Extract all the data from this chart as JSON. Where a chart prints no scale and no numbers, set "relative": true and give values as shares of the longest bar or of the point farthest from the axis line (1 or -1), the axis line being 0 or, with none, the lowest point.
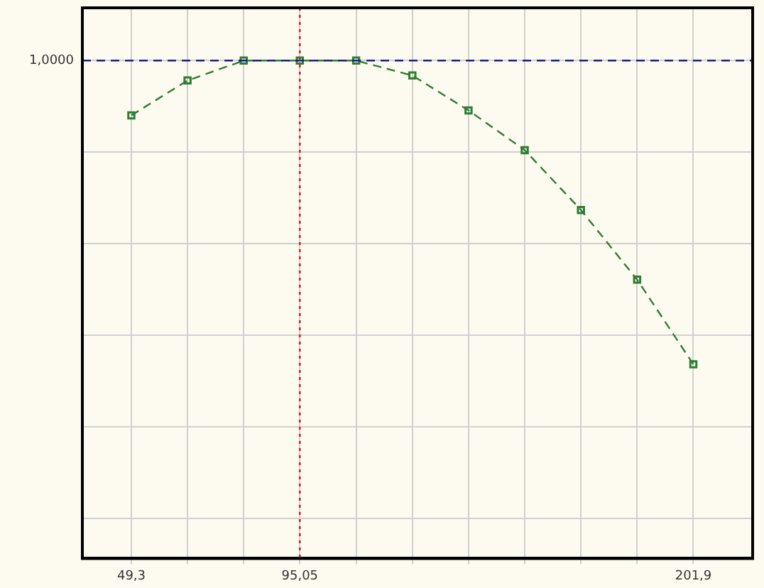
{
  "chart_data": {
    "type": "line",
    "relative": true,
    "x": [
      49.3,
      64.56,
      79.82,
      95.05,
      110.34,
      125.6,
      140.86,
      156.12,
      171.38,
      186.64,
      201.9
    ],
    "series": [
      {
        "color": "#2e7d32",
        "values": [
          0.89,
          0.96,
          1.0,
          1.0,
          1.0,
          0.97,
          0.9,
          0.82,
          0.7,
          0.56,
          0.39
        ]
      }
    ],
    "xlim": [
      36,
      218
    ],
    "xticks": [
      {
        "value": 49.3,
        "label": "49,3"
      },
      {
        "value": 64.56,
        "label": null
      },
      {
        "value": 79.82,
        "label": null
      },
      {
        "value": 95.05,
        "label": "95,05"
      },
      {
        "value": 110.34,
        "label": null
      },
      {
        "value": 125.6,
        "label": null
      },
      {
        "value": 140.86,
        "label": null
      },
      {
        "value": 156.12,
        "label": null
      },
      {
        "value": 171.38,
        "label": null
      },
      {
        "value": 186.64,
        "label": null
      },
      {
        "value": 201.9,
        "label": "201,9"
      }
    ],
    "ref_lines": [
      {
        "axis": "y",
        "value": 1,
        "label": "1,0000",
        "color": "#1a1a9c",
        "line_style": "dashed"
      },
      {
        "axis": "x",
        "value": 95.05,
        "color": "#c62828",
        "line_style": "dotted"
      }
    ],
    "grid": true,
    "marker": "square",
    "line_style": "dashed",
    "legend": false
  }
}
